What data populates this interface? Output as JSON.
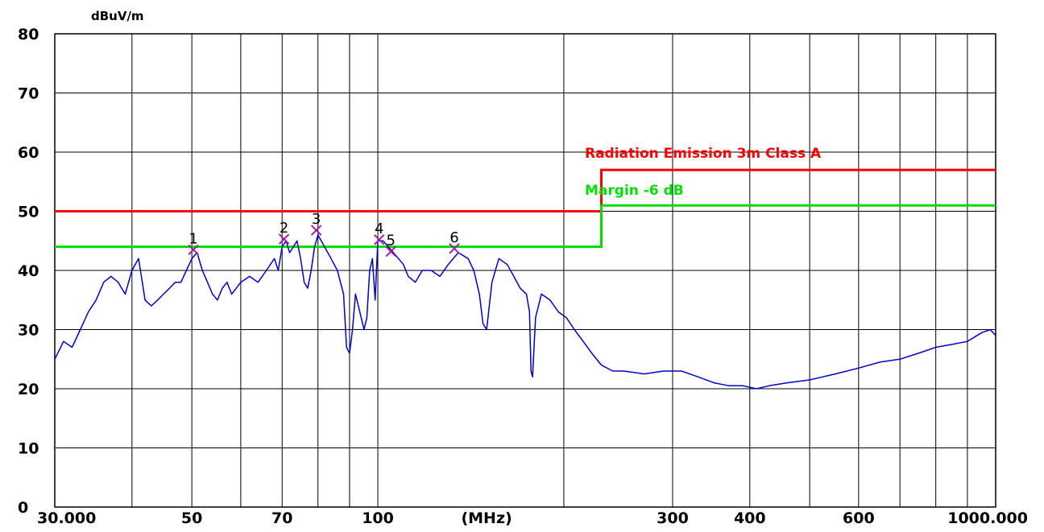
{
  "chart_data": {
    "type": "line",
    "yunit": "dBuV/m",
    "xunit": "(MHz)",
    "x_scale": "log",
    "xlim": [
      30,
      1000
    ],
    "ylim": [
      0,
      80
    ],
    "grid": true,
    "y_ticks": [
      0,
      10,
      20,
      30,
      40,
      50,
      60,
      70,
      80
    ],
    "x_tick_labels": [
      {
        "x": 30,
        "label": "30.000"
      },
      {
        "x": 50,
        "label": "50"
      },
      {
        "x": 70,
        "label": "70"
      },
      {
        "x": 100,
        "label": "100"
      },
      {
        "x": 150,
        "label": "(MHz)"
      },
      {
        "x": 300,
        "label": "300"
      },
      {
        "x": 400,
        "label": "400"
      },
      {
        "x": 600,
        "label": "600"
      },
      {
        "x": 1000,
        "label": "1000.000"
      }
    ],
    "x_gridlines": [
      30,
      40,
      50,
      60,
      70,
      80,
      90,
      100,
      200,
      300,
      400,
      500,
      600,
      700,
      800,
      900,
      1000
    ],
    "limit_lines": [
      {
        "name": "Radiation Emission 3m Class A",
        "color": "#ff0000",
        "points": [
          [
            30,
            50
          ],
          [
            230,
            50
          ],
          [
            230,
            57
          ],
          [
            1000,
            57
          ]
        ]
      },
      {
        "name": "Margin -6 dB",
        "color": "#00dd00",
        "points": [
          [
            30,
            44
          ],
          [
            230,
            44
          ],
          [
            230,
            51
          ],
          [
            1000,
            51
          ]
        ]
      }
    ],
    "series": [
      {
        "color": "#0000cc",
        "points": [
          [
            30,
            25
          ],
          [
            31,
            28
          ],
          [
            32,
            27
          ],
          [
            33,
            30
          ],
          [
            34,
            33
          ],
          [
            35,
            35
          ],
          [
            36,
            38
          ],
          [
            37,
            39
          ],
          [
            38,
            38
          ],
          [
            39,
            36
          ],
          [
            40,
            40
          ],
          [
            41,
            42
          ],
          [
            42,
            35
          ],
          [
            43,
            34
          ],
          [
            44,
            35
          ],
          [
            45,
            36
          ],
          [
            46,
            37
          ],
          [
            47,
            38
          ],
          [
            48,
            38
          ],
          [
            49,
            40
          ],
          [
            50,
            42
          ],
          [
            51,
            43
          ],
          [
            52,
            40
          ],
          [
            53,
            38
          ],
          [
            54,
            36
          ],
          [
            55,
            35
          ],
          [
            56,
            37
          ],
          [
            57,
            38
          ],
          [
            58,
            36
          ],
          [
            59,
            37
          ],
          [
            60,
            38
          ],
          [
            62,
            39
          ],
          [
            64,
            38
          ],
          [
            66,
            40
          ],
          [
            68,
            42
          ],
          [
            69,
            40
          ],
          [
            70,
            44
          ],
          [
            71,
            45
          ],
          [
            72,
            43
          ],
          [
            73,
            44
          ],
          [
            74,
            45
          ],
          [
            75,
            42
          ],
          [
            76,
            38
          ],
          [
            77,
            37
          ],
          [
            78,
            40
          ],
          [
            79,
            44
          ],
          [
            80,
            46
          ],
          [
            81,
            45
          ],
          [
            82,
            44
          ],
          [
            84,
            42
          ],
          [
            86,
            40
          ],
          [
            88,
            36
          ],
          [
            89,
            27
          ],
          [
            90,
            26
          ],
          [
            91,
            30
          ],
          [
            92,
            36
          ],
          [
            93,
            34
          ],
          [
            94,
            32
          ],
          [
            95,
            30
          ],
          [
            96,
            32
          ],
          [
            97,
            40
          ],
          [
            98,
            42
          ],
          [
            99,
            35
          ],
          [
            100,
            45
          ],
          [
            102,
            45
          ],
          [
            104,
            44
          ],
          [
            106,
            43
          ],
          [
            108,
            42
          ],
          [
            110,
            41
          ],
          [
            112,
            39
          ],
          [
            115,
            38
          ],
          [
            118,
            40
          ],
          [
            122,
            40
          ],
          [
            126,
            39
          ],
          [
            130,
            41
          ],
          [
            135,
            43
          ],
          [
            140,
            42
          ],
          [
            143,
            40
          ],
          [
            146,
            36
          ],
          [
            148,
            31
          ],
          [
            150,
            30
          ],
          [
            153,
            38
          ],
          [
            157,
            42
          ],
          [
            162,
            41
          ],
          [
            166,
            39
          ],
          [
            170,
            37
          ],
          [
            174,
            36
          ],
          [
            176,
            33
          ],
          [
            177,
            23
          ],
          [
            178,
            22
          ],
          [
            180,
            32
          ],
          [
            184,
            36
          ],
          [
            190,
            35
          ],
          [
            196,
            33
          ],
          [
            202,
            32
          ],
          [
            208,
            30
          ],
          [
            215,
            28
          ],
          [
            222,
            26
          ],
          [
            230,
            24
          ],
          [
            240,
            23
          ],
          [
            250,
            23
          ],
          [
            270,
            22.5
          ],
          [
            290,
            23
          ],
          [
            310,
            23
          ],
          [
            330,
            22
          ],
          [
            350,
            21
          ],
          [
            370,
            20.5
          ],
          [
            390,
            20.5
          ],
          [
            410,
            20
          ],
          [
            430,
            20.5
          ],
          [
            460,
            21
          ],
          [
            500,
            21.5
          ],
          [
            550,
            22.5
          ],
          [
            600,
            23.5
          ],
          [
            650,
            24.5
          ],
          [
            700,
            25
          ],
          [
            750,
            26
          ],
          [
            800,
            27
          ],
          [
            850,
            27.5
          ],
          [
            900,
            28
          ],
          [
            950,
            29.5
          ],
          [
            980,
            30
          ],
          [
            1000,
            29
          ]
        ]
      }
    ],
    "markers": [
      {
        "label": "1",
        "x": 50.3,
        "y": 43.5
      },
      {
        "label": "2",
        "x": 70.5,
        "y": 45.3
      },
      {
        "label": "3",
        "x": 79.5,
        "y": 46.8
      },
      {
        "label": "4",
        "x": 100.5,
        "y": 45.2
      },
      {
        "label": "5",
        "x": 105,
        "y": 43.2
      },
      {
        "label": "6",
        "x": 133,
        "y": 43.7
      }
    ]
  }
}
